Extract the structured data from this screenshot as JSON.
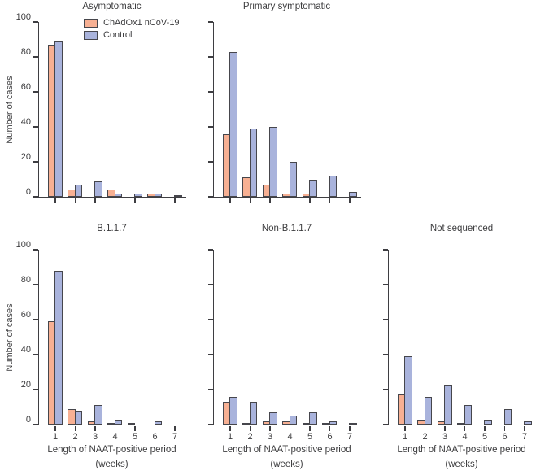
{
  "figure": {
    "y_axis_label": "Number of cases",
    "x_axis_label_line1": "Length of NAAT-positive period",
    "x_axis_label_line2": "(weeks)",
    "colors": {
      "vaccine_fill": "#f7b093",
      "control_fill": "#a9b3dc",
      "bar_border": "#46464c",
      "axis": "#3e3e42",
      "text": "#3c3c3e"
    },
    "legend": [
      {
        "name": "ChAdOx1 nCoV-19"
      },
      {
        "name": "Control"
      }
    ]
  },
  "chart_data": [
    {
      "type": "bar",
      "title": "Asymptomatic",
      "categories": [
        1,
        2,
        3,
        4,
        5,
        6,
        7
      ],
      "series": [
        {
          "name": "ChAdOx1 nCoV-19",
          "values": [
            87,
            4,
            0,
            4,
            0,
            2,
            0
          ]
        },
        {
          "name": "Control",
          "values": [
            89,
            7,
            9,
            2,
            2,
            2,
            1
          ]
        }
      ],
      "xlabel": "",
      "ylabel": "Number of cases",
      "ylim": [
        0,
        100
      ],
      "yticks": [
        0,
        20,
        40,
        60,
        80,
        100
      ],
      "show_y_tick_labels": true,
      "show_x_tick_labels": false,
      "legend_position": "upper-left-inside",
      "grid": false
    },
    {
      "type": "bar",
      "title": "Primary symptomatic",
      "categories": [
        1,
        2,
        3,
        4,
        5,
        6,
        7
      ],
      "series": [
        {
          "name": "ChAdOx1 nCoV-19",
          "values": [
            36,
            11,
            7,
            2,
            2,
            0,
            0
          ]
        },
        {
          "name": "Control",
          "values": [
            83,
            39,
            40,
            20,
            10,
            12,
            3
          ]
        }
      ],
      "xlabel": "",
      "ylabel": "",
      "ylim": [
        0,
        100
      ],
      "yticks": [
        0,
        20,
        40,
        60,
        80,
        100
      ],
      "show_y_tick_labels": false,
      "show_x_tick_labels": false,
      "legend_position": "none",
      "grid": false
    },
    {
      "type": "bar",
      "title": "B.1.1.7",
      "categories": [
        1,
        2,
        3,
        4,
        5,
        6,
        7
      ],
      "series": [
        {
          "name": "ChAdOx1 nCoV-19",
          "values": [
            59,
            9,
            2,
            1,
            1,
            0,
            0
          ]
        },
        {
          "name": "Control",
          "values": [
            88,
            8,
            11,
            3,
            0,
            2,
            0
          ]
        }
      ],
      "xlabel": "Length of NAAT-positive period (weeks)",
      "ylabel": "Number of cases",
      "ylim": [
        0,
        100
      ],
      "yticks": [
        0,
        20,
        40,
        60,
        80,
        100
      ],
      "show_y_tick_labels": true,
      "show_x_tick_labels": true,
      "legend_position": "none",
      "grid": false
    },
    {
      "type": "bar",
      "title": "Non-B.1.1.7",
      "categories": [
        1,
        2,
        3,
        4,
        5,
        6,
        7
      ],
      "series": [
        {
          "name": "ChAdOx1 nCoV-19",
          "values": [
            13,
            1,
            2,
            2,
            1,
            1,
            0
          ]
        },
        {
          "name": "Control",
          "values": [
            16,
            13,
            7,
            5,
            7,
            2,
            1
          ]
        }
      ],
      "xlabel": "Length of NAAT-positive period (weeks)",
      "ylabel": "",
      "ylim": [
        0,
        100
      ],
      "yticks": [
        0,
        20,
        40,
        60,
        80,
        100
      ],
      "show_y_tick_labels": false,
      "show_x_tick_labels": true,
      "legend_position": "none",
      "grid": false
    },
    {
      "type": "bar",
      "title": "Not sequenced",
      "categories": [
        1,
        2,
        3,
        4,
        5,
        6,
        7
      ],
      "series": [
        {
          "name": "ChAdOx1 nCoV-19",
          "values": [
            17,
            3,
            2,
            1,
            0,
            0,
            0
          ]
        },
        {
          "name": "Control",
          "values": [
            39,
            16,
            23,
            11,
            3,
            9,
            2
          ]
        }
      ],
      "xlabel": "Length of NAAT-positive period (weeks)",
      "ylabel": "",
      "ylim": [
        0,
        100
      ],
      "yticks": [
        0,
        20,
        40,
        60,
        80,
        100
      ],
      "show_y_tick_labels": false,
      "show_x_tick_labels": true,
      "legend_position": "none",
      "grid": false
    }
  ]
}
